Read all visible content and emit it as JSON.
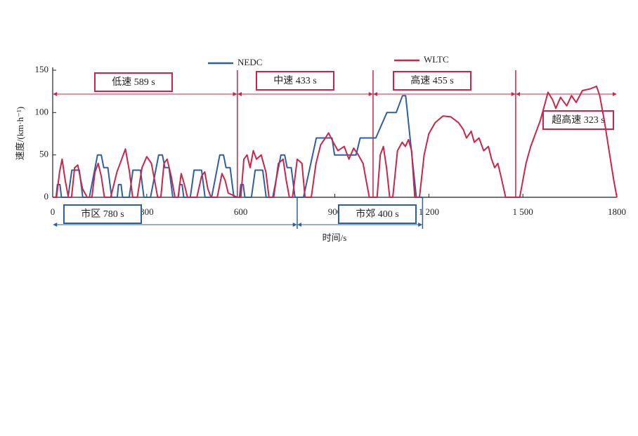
{
  "chart_data": {
    "type": "line",
    "y_label": "速度/(km·h⁻¹)",
    "x_label": "时间/s",
    "xlim": [
      0,
      1800
    ],
    "ylim": [
      0,
      150
    ],
    "xticks": [
      0,
      300,
      600,
      900,
      {
        "value": 1200,
        "label": "1 200"
      },
      {
        "value": 1500,
        "label": "1 500"
      },
      1800
    ],
    "yticks": [
      0,
      50,
      100,
      150
    ],
    "series": [
      {
        "name": "NEDC",
        "color": "#2e5fa3",
        "x": [
          0,
          11,
          15,
          23,
          28,
          49,
          61,
          85,
          96,
          117,
          143,
          155,
          163,
          176,
          188,
          195,
          206,
          210,
          218,
          223,
          244,
          256,
          280,
          291,
          312,
          338,
          350,
          358,
          371,
          383,
          390,
          401,
          405,
          413,
          418,
          439,
          451,
          475,
          486,
          507,
          533,
          545,
          553,
          566,
          578,
          585,
          596,
          600,
          608,
          613,
          634,
          646,
          670,
          681,
          702,
          728,
          740,
          748,
          761,
          773,
          780,
          800,
          841,
          891,
          899,
          968,
          981,
          1031,
          1066,
          1096,
          1116,
          1126,
          1160,
          1180
        ],
        "values": [
          0,
          0,
          15,
          15,
          0,
          0,
          32,
          32,
          0,
          0,
          50,
          50,
          35,
          35,
          0,
          0,
          0,
          15,
          15,
          0,
          0,
          32,
          32,
          0,
          0,
          50,
          50,
          35,
          35,
          0,
          0,
          0,
          15,
          15,
          0,
          0,
          32,
          32,
          0,
          0,
          50,
          50,
          35,
          35,
          0,
          0,
          0,
          15,
          15,
          0,
          0,
          32,
          32,
          0,
          0,
          50,
          50,
          35,
          35,
          0,
          0,
          0,
          70,
          70,
          50,
          50,
          70,
          70,
          100,
          100,
          120,
          120,
          0,
          0
        ]
      },
      {
        "name": "WLTC",
        "color": "#c8264a",
        "x": [
          0,
          12,
          22,
          30,
          40,
          50,
          60,
          70,
          80,
          95,
          110,
          125,
          135,
          145,
          155,
          165,
          185,
          205,
          225,
          232,
          245,
          255,
          270,
          285,
          300,
          315,
          325,
          335,
          345,
          355,
          365,
          378,
          390,
          400,
          410,
          420,
          430,
          460,
          475,
          485,
          495,
          505,
          525,
          540,
          550,
          560,
          589,
          600,
          610,
          620,
          630,
          640,
          650,
          665,
          680,
          690,
          705,
          720,
          735,
          745,
          755,
          765,
          780,
          795,
          805,
          825,
          840,
          855,
          870,
          880,
          895,
          910,
          930,
          945,
          960,
          975,
          990,
          1000,
          1010,
          1022,
          1035,
          1045,
          1055,
          1065,
          1075,
          1085,
          1100,
          1115,
          1125,
          1135,
          1145,
          1155,
          1170,
          1185,
          1200,
          1220,
          1245,
          1270,
          1295,
          1310,
          1320,
          1335,
          1345,
          1360,
          1375,
          1390,
          1400,
          1410,
          1420,
          1430,
          1445,
          1477,
          1490,
          1510,
          1525,
          1540,
          1555,
          1570,
          1580,
          1595,
          1605,
          1620,
          1640,
          1655,
          1670,
          1690,
          1715,
          1735,
          1745,
          1760,
          1775,
          1790,
          1800
        ],
        "values": [
          0,
          0,
          30,
          45,
          20,
          0,
          0,
          35,
          38,
          10,
          0,
          0,
          30,
          40,
          25,
          0,
          0,
          30,
          50,
          57,
          30,
          0,
          0,
          35,
          48,
          40,
          20,
          0,
          0,
          40,
          45,
          25,
          0,
          0,
          28,
          15,
          0,
          0,
          25,
          30,
          10,
          0,
          0,
          28,
          20,
          5,
          0,
          0,
          45,
          50,
          35,
          55,
          45,
          50,
          30,
          0,
          0,
          40,
          45,
          20,
          0,
          0,
          45,
          40,
          0,
          0,
          40,
          62,
          70,
          76,
          65,
          55,
          60,
          45,
          58,
          50,
          40,
          20,
          0,
          0,
          0,
          50,
          60,
          35,
          0,
          0,
          55,
          65,
          60,
          68,
          55,
          0,
          0,
          50,
          75,
          88,
          96,
          95,
          88,
          80,
          70,
          78,
          65,
          70,
          55,
          60,
          45,
          35,
          40,
          25,
          0,
          0,
          0,
          40,
          60,
          75,
          90,
          110,
          124,
          115,
          105,
          118,
          108,
          120,
          112,
          126,
          128,
          131,
          120,
          90,
          55,
          20,
          0
        ]
      }
    ],
    "annotations": [
      {
        "label": "低速 589 s",
        "start": 0,
        "end": 589,
        "series": "WLTC"
      },
      {
        "label": "中速 433 s",
        "start": 589,
        "end": 1022,
        "series": "WLTC"
      },
      {
        "label": "高速 455 s",
        "start": 1022,
        "end": 1477,
        "series": "WLTC"
      },
      {
        "label": "超高速 323 s",
        "start": 1477,
        "end": 1800,
        "series": "WLTC"
      },
      {
        "label": "市区 780 s",
        "start": 0,
        "end": 780,
        "series": "NEDC"
      },
      {
        "label": "市郊 400 s",
        "start": 780,
        "end": 1180,
        "series": "NEDC"
      }
    ]
  }
}
